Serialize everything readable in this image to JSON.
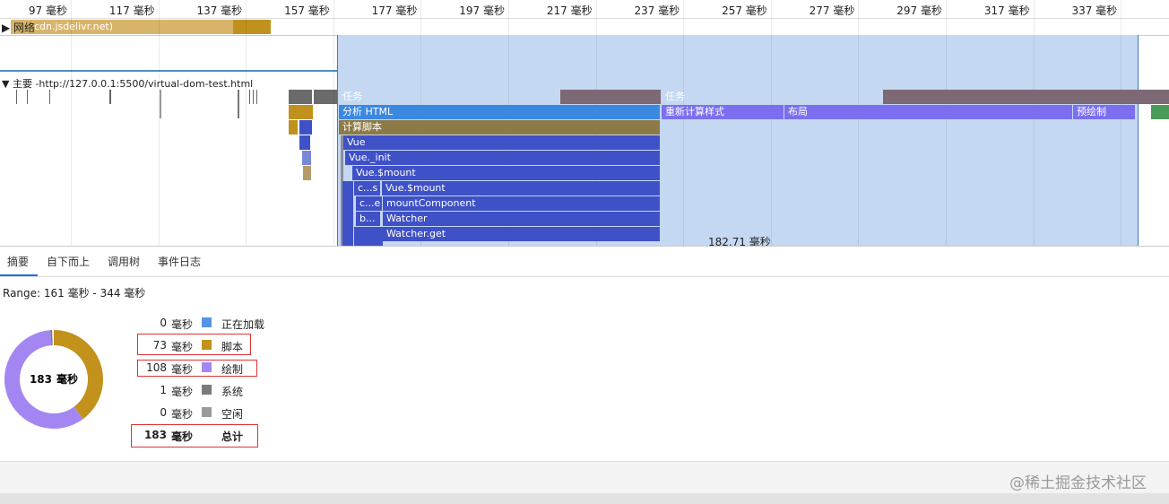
{
  "ruler": {
    "ticks": [
      "97 毫秒",
      "117 毫秒",
      "137 毫秒",
      "157 毫秒",
      "177 毫秒",
      "197 毫秒",
      "217 毫秒",
      "237 毫秒",
      "257 毫秒",
      "277 毫秒",
      "297 毫秒",
      "317 毫秒",
      "337 毫秒"
    ]
  },
  "network": {
    "label": "网络",
    "bar": "cdn.jsdelivr.net)"
  },
  "main": {
    "label": "主要 -http://127.0.0.1:5500/virtual-dom-test.html"
  },
  "flame": {
    "events": [
      "任务",
      "任务",
      "分析 HTML",
      "重新计算样式",
      "布局",
      "预绘制",
      "计算脚本",
      "Vue",
      "Vue._init",
      "Vue.$mount",
      "c...s",
      "Vue.$mount",
      "c...e",
      "mountComponent",
      "b...",
      "Watcher",
      "Watcher.get"
    ],
    "time_label": "182.71  毫秒"
  },
  "tabs": [
    "摘要",
    "自下而上",
    "调用树",
    "事件日志"
  ],
  "summary": {
    "range": "Range: 161  毫秒 - 344  毫秒",
    "unit": "毫秒",
    "items": [
      {
        "value": 0,
        "name": "正在加载",
        "color": "#5594e6"
      },
      {
        "value": 73,
        "name": "脚本",
        "color": "#c2921d"
      },
      {
        "value": 108,
        "name": "绘制",
        "color": "#a486f3"
      },
      {
        "value": 1,
        "name": "系统",
        "color": "#7a7a7a"
      },
      {
        "value": 0,
        "name": "空闲",
        "color": "#9a9a9a"
      }
    ],
    "total": {
      "value": 183,
      "name": "总计"
    }
  },
  "watermark": "@稀土掘金技术社区"
}
